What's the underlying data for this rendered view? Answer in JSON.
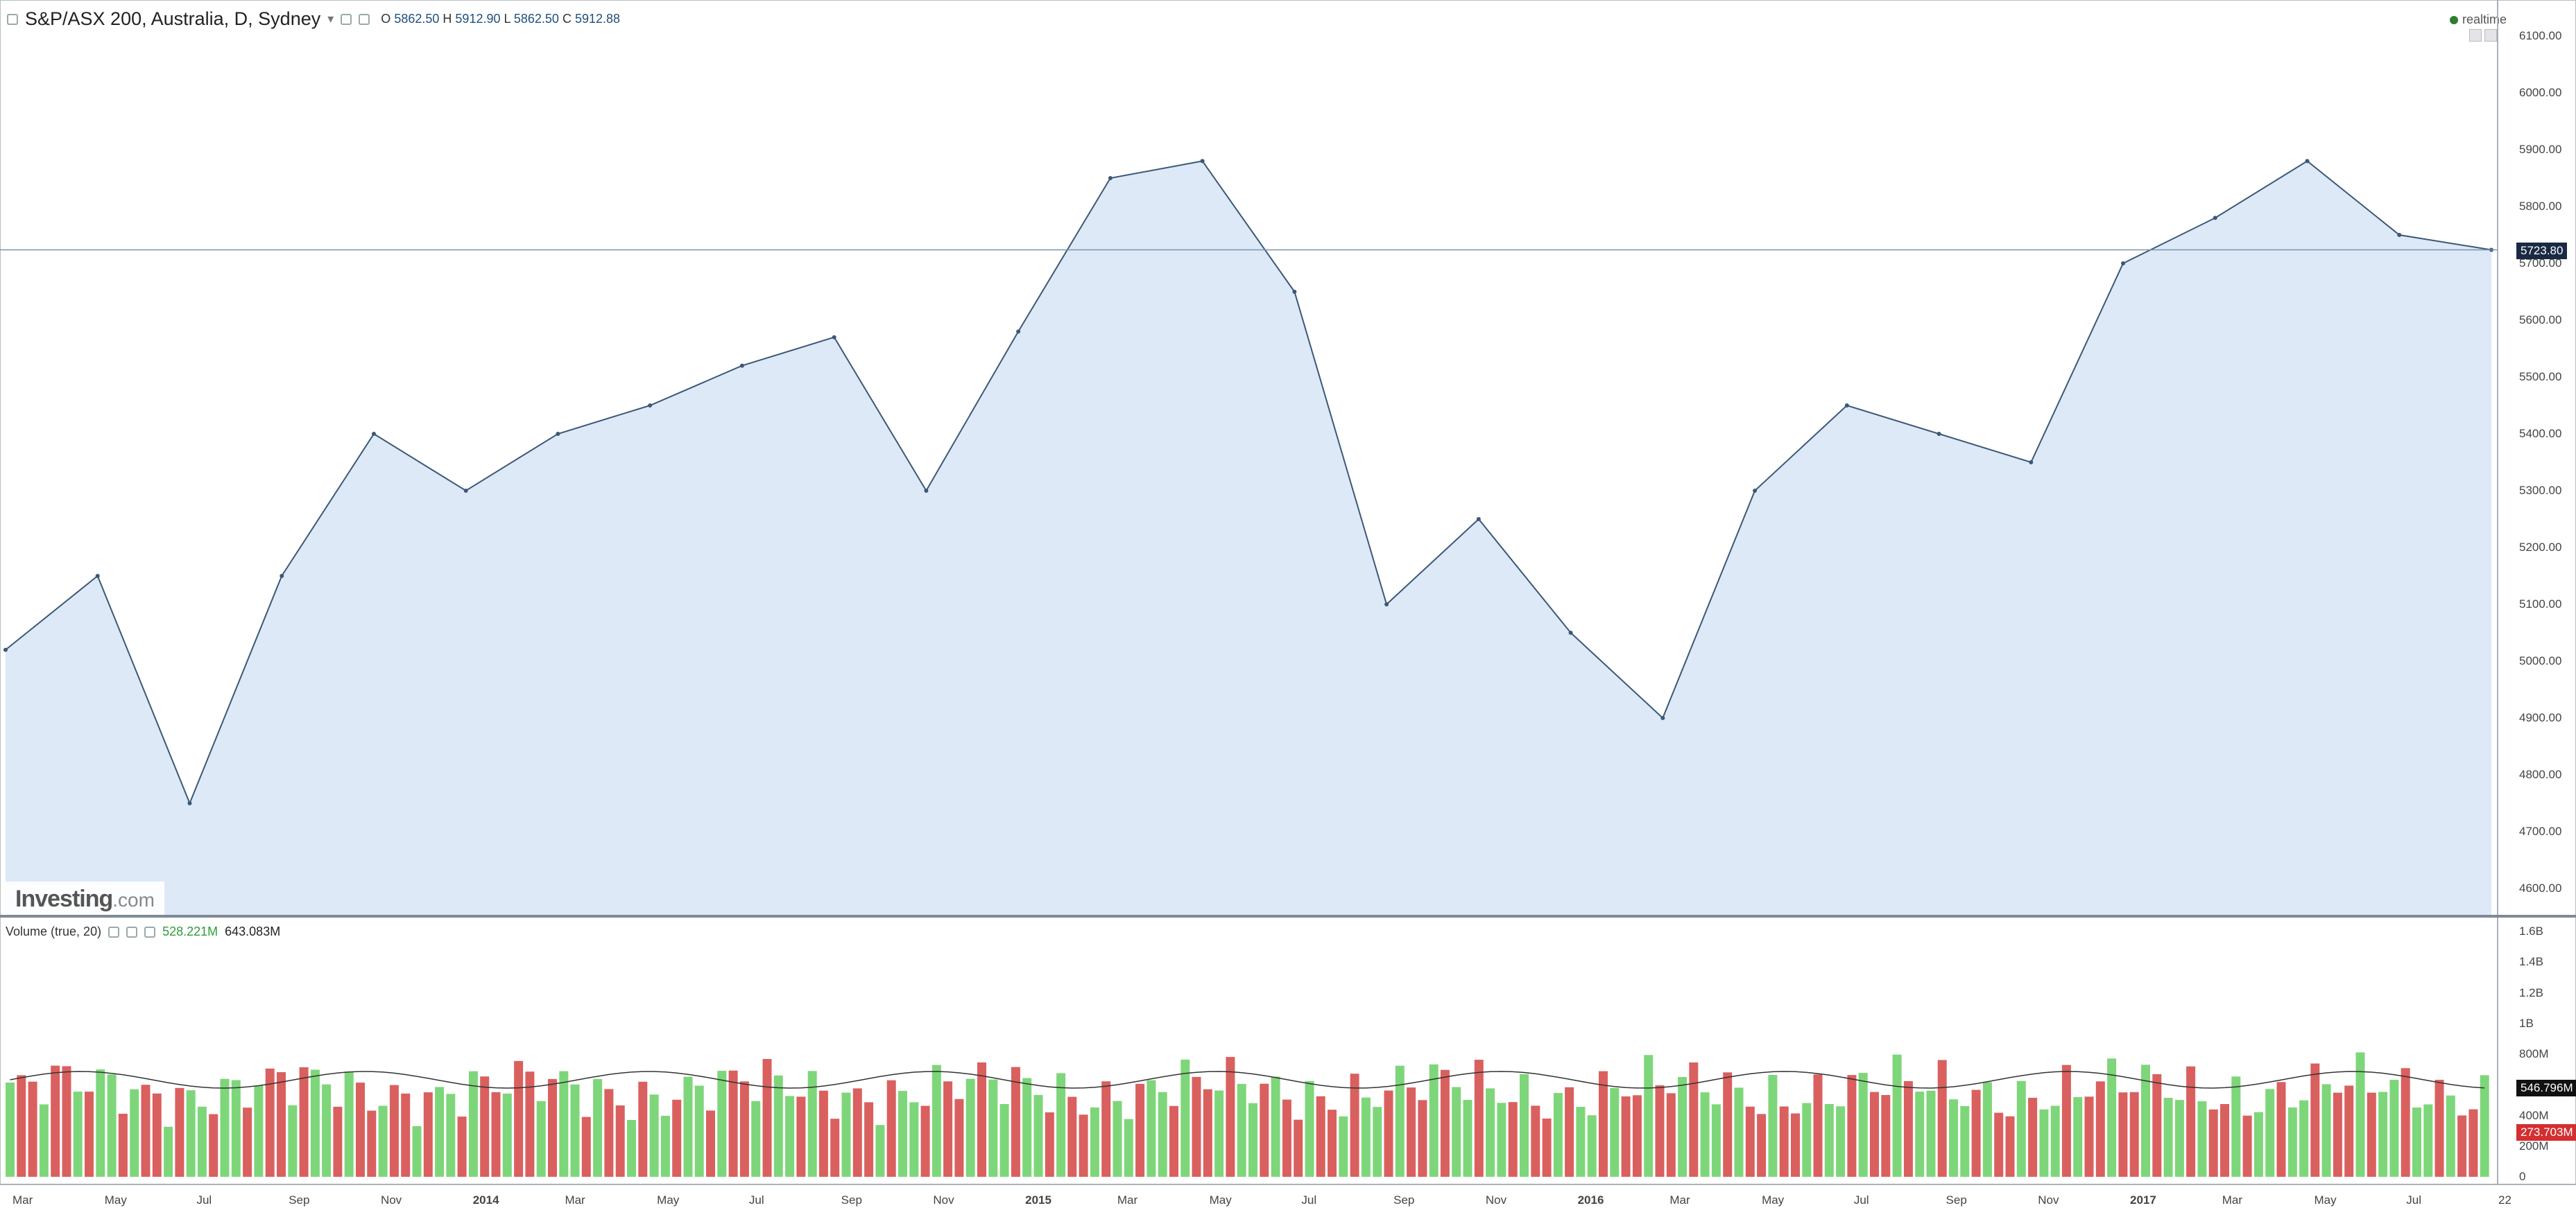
{
  "header": {
    "title": "S&P/ASX 200, Australia, D, Sydney",
    "ohlc": {
      "o_label": "O",
      "o": "5862.50",
      "h_label": "H",
      "h": "5912.90",
      "l_label": "L",
      "l": "5862.50",
      "c_label": "C",
      "c": "5912.88"
    },
    "realtime_label": "realtime"
  },
  "watermark": {
    "brand": "Investing",
    "domain": ".com"
  },
  "price_axis": {
    "ticks": [
      "6100.00",
      "6000.00",
      "5900.00",
      "5800.00",
      "5700.00",
      "5600.00",
      "5500.00",
      "5400.00",
      "5300.00",
      "5200.00",
      "5100.00",
      "5000.00",
      "4900.00",
      "4800.00",
      "4700.00",
      "4600.00"
    ],
    "last_price": "5723.80"
  },
  "volume": {
    "legend_title": "Volume (true, 20)",
    "value1": "528.221M",
    "value2": "643.083M",
    "axis_ticks": [
      "1.6B",
      "1.4B",
      "1.2B",
      "1B",
      "800M",
      "600M",
      "400M",
      "200M",
      "0"
    ],
    "tag_ma": "546.796M",
    "tag_vol": "273.703M"
  },
  "time_axis": {
    "labels": [
      "Mar",
      "May",
      "Jul",
      "Sep",
      "Nov",
      "2014",
      "Mar",
      "May",
      "Jul",
      "Sep",
      "Nov",
      "2015",
      "Mar",
      "May",
      "Jul",
      "Sep",
      "Nov",
      "2016",
      "Mar",
      "May",
      "Jul",
      "Sep",
      "Nov",
      "2017",
      "Mar",
      "May",
      "Jul",
      "22"
    ]
  },
  "colors": {
    "line": "#3c5877",
    "area": "#dde9f7",
    "up": "#7ed67a",
    "down": "#d9605f",
    "marker": "#1e8fd8"
  },
  "chart_data": {
    "type": "area",
    "title": "S&P/ASX 200, Australia, D, Sydney",
    "xlabel": "",
    "ylabel": "",
    "ylim": [
      4600,
      6100
    ],
    "x": [
      "2013-03",
      "2013-05",
      "2013-07",
      "2013-09",
      "2013-11",
      "2014-01",
      "2014-03",
      "2014-05",
      "2014-07",
      "2014-09",
      "2014-11",
      "2015-01",
      "2015-03",
      "2015-05",
      "2015-07",
      "2015-09",
      "2015-11",
      "2016-01",
      "2016-03",
      "2016-05",
      "2016-07",
      "2016-09",
      "2016-11",
      "2017-01",
      "2017-03",
      "2017-05",
      "2017-07",
      "2017-08-22"
    ],
    "series": [
      {
        "name": "S&P/ASX 200",
        "values": [
          5020,
          5150,
          4750,
          5150,
          5400,
          5300,
          5400,
          5450,
          5520,
          5570,
          5300,
          5580,
          5850,
          5880,
          5650,
          5100,
          5250,
          5050,
          4900,
          5300,
          5450,
          5400,
          5350,
          5700,
          5780,
          5880,
          5750,
          5723.8
        ]
      }
    ],
    "grid": false,
    "legend": "none"
  }
}
